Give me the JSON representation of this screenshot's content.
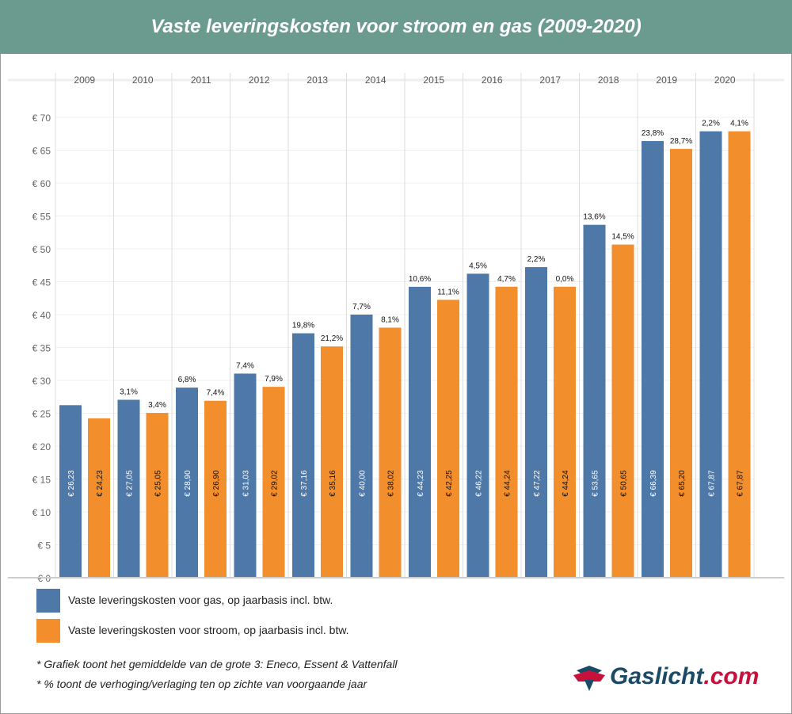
{
  "title": "Vaste leveringskosten voor stroom en gas (2009-2020)",
  "chart_data": {
    "type": "bar",
    "categories": [
      "2009",
      "2010",
      "2011",
      "2012",
      "2013",
      "2014",
      "2015",
      "2016",
      "2017",
      "2018",
      "2019",
      "2020"
    ],
    "ylim": [
      0,
      70
    ],
    "yticks": [
      0,
      5,
      10,
      15,
      20,
      25,
      30,
      35,
      40,
      45,
      50,
      55,
      60,
      65,
      70
    ],
    "ytick_labels": [
      "€ 0",
      "€ 5",
      "€ 10",
      "€ 15",
      "€ 20",
      "€ 25",
      "€ 30",
      "€ 35",
      "€ 40",
      "€ 45",
      "€ 50",
      "€ 55",
      "€ 60",
      "€ 65",
      "€ 70"
    ],
    "grid": true,
    "legend_position": "bottom",
    "series": [
      {
        "name": "Vaste leveringskosten voor gas, op jaarbasis incl. btw.",
        "color": "#4e78a7",
        "values": [
          26.23,
          27.05,
          28.9,
          31.03,
          37.16,
          40.0,
          44.23,
          46.22,
          47.22,
          53.65,
          66.39,
          67.87
        ],
        "value_labels": [
          "€ 26,23",
          "€ 27,05",
          "€ 28,90",
          "€ 31,03",
          "€ 37,16",
          "€ 40,00",
          "€ 44,23",
          "€ 46,22",
          "€ 47,22",
          "€ 53,65",
          "€ 66,39",
          "€ 67,87"
        ],
        "change_labels": [
          "",
          "3,1%",
          "6,8%",
          "7,4%",
          "19,8%",
          "7,7%",
          "10,6%",
          "4,5%",
          "2,2%",
          "13,6%",
          "23,8%",
          "2,2%"
        ]
      },
      {
        "name": "Vaste leveringskosten voor stroom, op jaarbasis incl. btw.",
        "color": "#f28e2c",
        "values": [
          24.23,
          25.05,
          26.9,
          29.02,
          35.16,
          38.02,
          42.25,
          44.24,
          44.24,
          50.65,
          65.2,
          67.87
        ],
        "value_labels": [
          "€ 24,23",
          "€ 25,05",
          "€ 26,90",
          "€ 29,02",
          "€ 35,16",
          "€ 38,02",
          "€ 42,25",
          "€ 44,24",
          "€ 44,24",
          "€ 50,65",
          "€ 65,20",
          "€ 67,87"
        ],
        "change_labels": [
          "",
          "3,4%",
          "7,4%",
          "7,9%",
          "21,2%",
          "8,1%",
          "11,1%",
          "4,7%",
          "0,0%",
          "14,5%",
          "28,7%",
          "4,1%"
        ]
      }
    ]
  },
  "notes": [
    "* Grafiek toont het gemiddelde van de grote 3: Eneco, Essent & Vattenfall",
    "* % toont de verhoging/verlaging ten op zichte van voorgaande jaar"
  ],
  "logo": {
    "name": "Gaslicht",
    "domain": ".com",
    "colors": {
      "navy": "#1a4a66",
      "red": "#c8103c"
    }
  }
}
